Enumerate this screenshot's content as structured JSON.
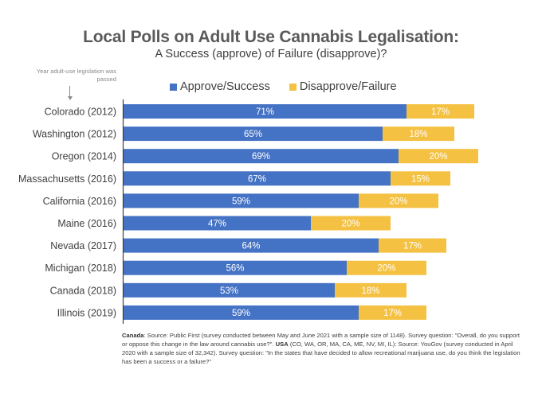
{
  "chart_data": {
    "type": "bar",
    "orientation": "horizontal",
    "stacked": true,
    "title": "Local Polls on Adult Use Cannabis Legalisation:",
    "subtitle": "A Success (approve) of Failure (disapprove)?",
    "annotation": "Year adult-use legislation was passed",
    "xlabel": "",
    "ylabel": "",
    "xlim": [
      0,
      100
    ],
    "grid": false,
    "legend_position": "top",
    "categories": [
      "Colorado (2012)",
      "Washington (2012)",
      "Oregon (2014)",
      "Massachusetts (2016)",
      "California (2016)",
      "Maine (2016)",
      "Nevada (2017)",
      "Michigan (2018)",
      "Canada (2018)",
      "Illinois (2019)"
    ],
    "series": [
      {
        "name": "Approve/Success",
        "color": "#4472C4",
        "values": [
          71,
          65,
          69,
          67,
          59,
          47,
          64,
          56,
          53,
          59
        ]
      },
      {
        "name": "Disapprove/Failure",
        "color": "#F4C142",
        "values": [
          17,
          18,
          20,
          15,
          20,
          20,
          17,
          20,
          18,
          17
        ]
      }
    ],
    "value_suffix": "%"
  },
  "footnote": {
    "canada_label": "Canada",
    "canada_text": ": Source: Public First (survey conducted between May and June 2021 with a sample size of 1148). Survey question: \"Overall, do you support or oppose this change in the law around cannabis use?\". ",
    "usa_label": "USA",
    "usa_text": " (CO, WA, OR, MA, CA, ME, NV, MI, IL): Source: YouGov (survey conducted in April 2020 with a sample size of 32,342). Survey question: \"In the states that have decided to allow recreational marijuana use, do you think the legislation has been a success or a failure?\""
  }
}
